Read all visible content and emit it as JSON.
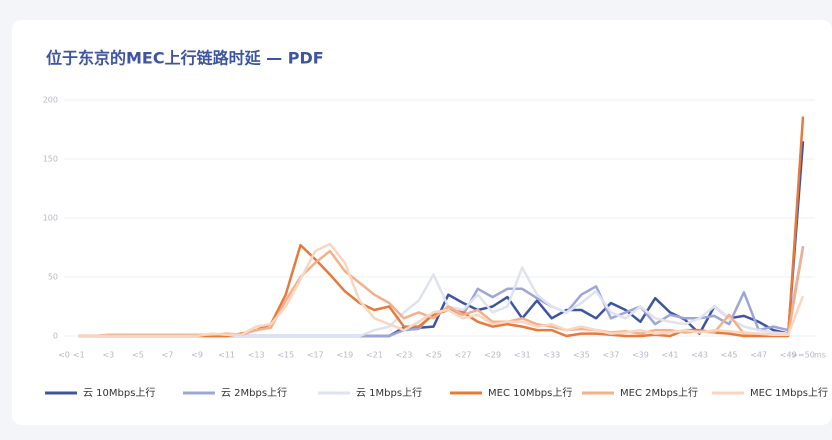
{
  "chart_data": {
    "type": "line",
    "title": "位于东京的MEC上行链路时延 — PDF",
    "x_unit": "ms",
    "categories": [
      "<0",
      "<1",
      null,
      "<3",
      null,
      "<5",
      null,
      "<7",
      null,
      "<9",
      null,
      "<11",
      null,
      "<13",
      null,
      "<15",
      null,
      "<17",
      null,
      "<19",
      null,
      "<21",
      null,
      "<23",
      null,
      "<25",
      null,
      "<27",
      null,
      "<29",
      null,
      "<31",
      null,
      "<33",
      null,
      "<35",
      null,
      "<37",
      null,
      "<39",
      null,
      "<41",
      null,
      "<43",
      null,
      "<45",
      null,
      "<47",
      null,
      "<49",
      ">=50"
    ],
    "ylim": [
      0,
      200
    ],
    "yticks": [
      0,
      50,
      100,
      150,
      200
    ],
    "grid": true,
    "series": [
      {
        "name": "云 10Mbps上行",
        "color": "#3d55a0",
        "values": [
          null,
          0,
          0,
          0,
          0,
          0,
          0,
          0,
          0,
          0,
          0,
          0,
          0,
          0,
          0,
          0,
          0,
          0,
          0,
          0,
          0,
          0,
          0,
          7,
          7,
          8,
          35,
          28,
          22,
          25,
          33,
          15,
          30,
          15,
          22,
          22,
          15,
          28,
          22,
          12,
          32,
          20,
          14,
          2,
          25,
          15,
          17,
          12,
          5,
          2,
          165
        ]
      },
      {
        "name": "云 2Mbps上行",
        "color": "#9ea6d6",
        "values": [
          null,
          0,
          0,
          0,
          0,
          0,
          0,
          0,
          0,
          0,
          0,
          0,
          0,
          0,
          0,
          0,
          0,
          0,
          0,
          0,
          0,
          0,
          0,
          5,
          6,
          20,
          22,
          18,
          40,
          33,
          40,
          40,
          32,
          25,
          20,
          35,
          42,
          15,
          20,
          25,
          10,
          18,
          15,
          15,
          17,
          10,
          37,
          5,
          8,
          5,
          76
        ]
      },
      {
        "name": "云 1Mbps上行",
        "color": "#dfe2f0",
        "values": [
          null,
          0,
          0,
          0,
          0,
          0,
          0,
          0,
          0,
          0,
          0,
          0,
          0,
          0,
          0,
          0,
          0,
          0,
          0,
          0,
          0,
          5,
          8,
          20,
          30,
          52,
          25,
          22,
          35,
          20,
          25,
          58,
          35,
          25,
          20,
          28,
          38,
          20,
          15,
          25,
          15,
          12,
          10,
          15,
          25,
          15,
          8,
          5,
          3,
          2,
          75
        ]
      },
      {
        "name": "MEC 10Mbps上行",
        "color": "#e8793a",
        "values": [
          null,
          0,
          0,
          0,
          0,
          0,
          0,
          0,
          0,
          0,
          0,
          0,
          2,
          5,
          10,
          35,
          77,
          65,
          52,
          38,
          28,
          22,
          25,
          8,
          8,
          18,
          22,
          20,
          12,
          8,
          10,
          8,
          5,
          5,
          0,
          2,
          2,
          1,
          0,
          0,
          1,
          0,
          5,
          5,
          3,
          2,
          0,
          0,
          0,
          0,
          186
        ]
      },
      {
        "name": "MEC 2Mbps上行",
        "color": "#f4b08a",
        "values": [
          null,
          0,
          0,
          1,
          1,
          1,
          1,
          1,
          1,
          1,
          1,
          2,
          1,
          5,
          7,
          30,
          50,
          62,
          72,
          55,
          45,
          35,
          28,
          15,
          20,
          15,
          25,
          18,
          22,
          12,
          12,
          15,
          10,
          8,
          5,
          6,
          5,
          3,
          4,
          2,
          5,
          5,
          3,
          4,
          3,
          18,
          2,
          2,
          1,
          1,
          75
        ]
      },
      {
        "name": "MEC 1Mbps上行",
        "color": "#f9d6bf",
        "values": [
          null,
          0,
          0,
          0,
          0,
          0,
          0,
          0,
          0,
          0,
          2,
          1,
          1,
          8,
          10,
          25,
          48,
          72,
          78,
          62,
          30,
          15,
          10,
          5,
          12,
          20,
          22,
          15,
          18,
          10,
          12,
          12,
          8,
          10,
          5,
          8,
          5,
          2,
          3,
          5,
          2,
          3,
          5,
          3,
          5,
          4,
          3,
          2,
          1,
          1,
          34
        ]
      }
    ]
  }
}
